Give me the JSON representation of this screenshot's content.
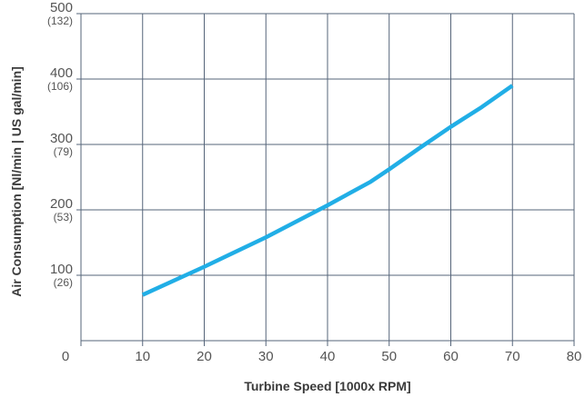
{
  "chart_data": {
    "type": "line",
    "xlabel": "Turbine Speed [1000x RPM]",
    "ylabel": "Air Consumption [Nl/min | US gal/min]",
    "xlim": [
      0,
      80
    ],
    "ylim": [
      0,
      500
    ],
    "x_ticks": [
      "0",
      "10",
      "20",
      "30",
      "40",
      "50",
      "60",
      "70",
      "80"
    ],
    "y_ticks": [
      {
        "value": 100,
        "label": "100",
        "sub": "(26)"
      },
      {
        "value": 200,
        "label": "200",
        "sub": "(53)"
      },
      {
        "value": 300,
        "label": "300",
        "sub": "(79)"
      },
      {
        "value": 400,
        "label": "400",
        "sub": "(106)"
      },
      {
        "value": 500,
        "label": "500",
        "sub": "(132)"
      }
    ],
    "grid": true,
    "series": [
      {
        "x": [
          10,
          20,
          30,
          40,
          47,
          50,
          55,
          60,
          65,
          70
        ],
        "y": [
          70,
          113,
          158,
          207,
          243,
          262,
          295,
          327,
          357,
          390
        ],
        "color": "#21aee6"
      }
    ]
  }
}
